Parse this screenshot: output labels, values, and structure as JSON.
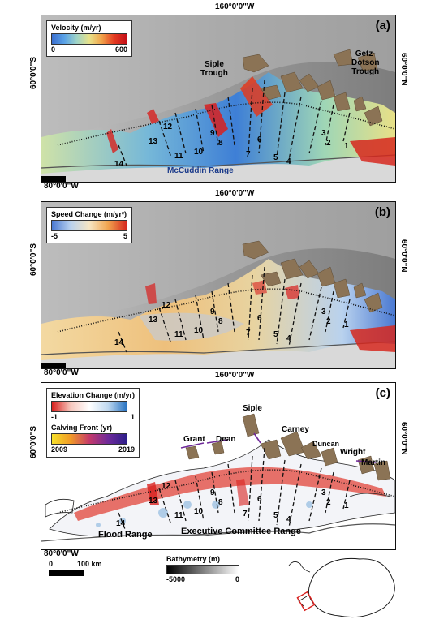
{
  "longitude_label": "160°0'0\"W",
  "longitude_label_bottom": "80°0'0\"W",
  "latitude_label_left": "60°0'0\"S",
  "latitude_label_right": "60°0'0\"N",
  "panels": [
    {
      "label": "(a)",
      "legend": {
        "title": "Velocity (m/yr)",
        "min": "0",
        "max": "600"
      },
      "places": {
        "siple": "Siple\nTrough",
        "getz": "Getz-\nDotson\nTrough",
        "range": "McCuddin Range"
      }
    },
    {
      "label": "(b)",
      "legend": {
        "title": "Speed Change (m/yr²)",
        "min": "-5",
        "max": "5"
      }
    },
    {
      "label": "(c)",
      "legend": {
        "title": "Elevation Change (m/yr)",
        "min": "-1",
        "max": "1"
      },
      "legend2": {
        "title": "Calving Front (yr)",
        "min": "2009",
        "max": "2019"
      },
      "places": {
        "siple": "Siple",
        "carney": "Carney",
        "duncan": "Duncan",
        "grant": "Grant",
        "dean": "Dean",
        "wright": "Wright",
        "martin": "Martin",
        "flood": "Flood Range",
        "executive": "Executive Committee Range"
      }
    }
  ],
  "glacier_numbers": [
    "1",
    "2",
    "3",
    "4",
    "5",
    "6",
    "7",
    "8",
    "9",
    "10",
    "11",
    "12",
    "13",
    "14"
  ],
  "scale_bar": {
    "min": "0",
    "max": "100 km"
  },
  "bathymetry": {
    "title": "Bathymetry (m)",
    "min": "-5000",
    "max": "0"
  },
  "colors": {
    "velocity_ramp": [
      "#3a6fd0",
      "#5aa2e6",
      "#9fd4c8",
      "#e8e28a",
      "#f1a34a",
      "#e33a20",
      "#c5101a"
    ],
    "speed_change_ramp": [
      "#4a79d2",
      "#b9d2ee",
      "#f6e6c4",
      "#f1a54f",
      "#d6281e"
    ],
    "elevation_change_ramp": [
      "#d8201e",
      "#f6c7bd",
      "#ffffff",
      "#c0d9f0",
      "#2a74c2"
    ],
    "calving_ramp": [
      "#f6e12a",
      "#f19a27",
      "#c53a6a",
      "#6f2a9a",
      "#2d1e8a"
    ],
    "rock": "#8b7355"
  }
}
